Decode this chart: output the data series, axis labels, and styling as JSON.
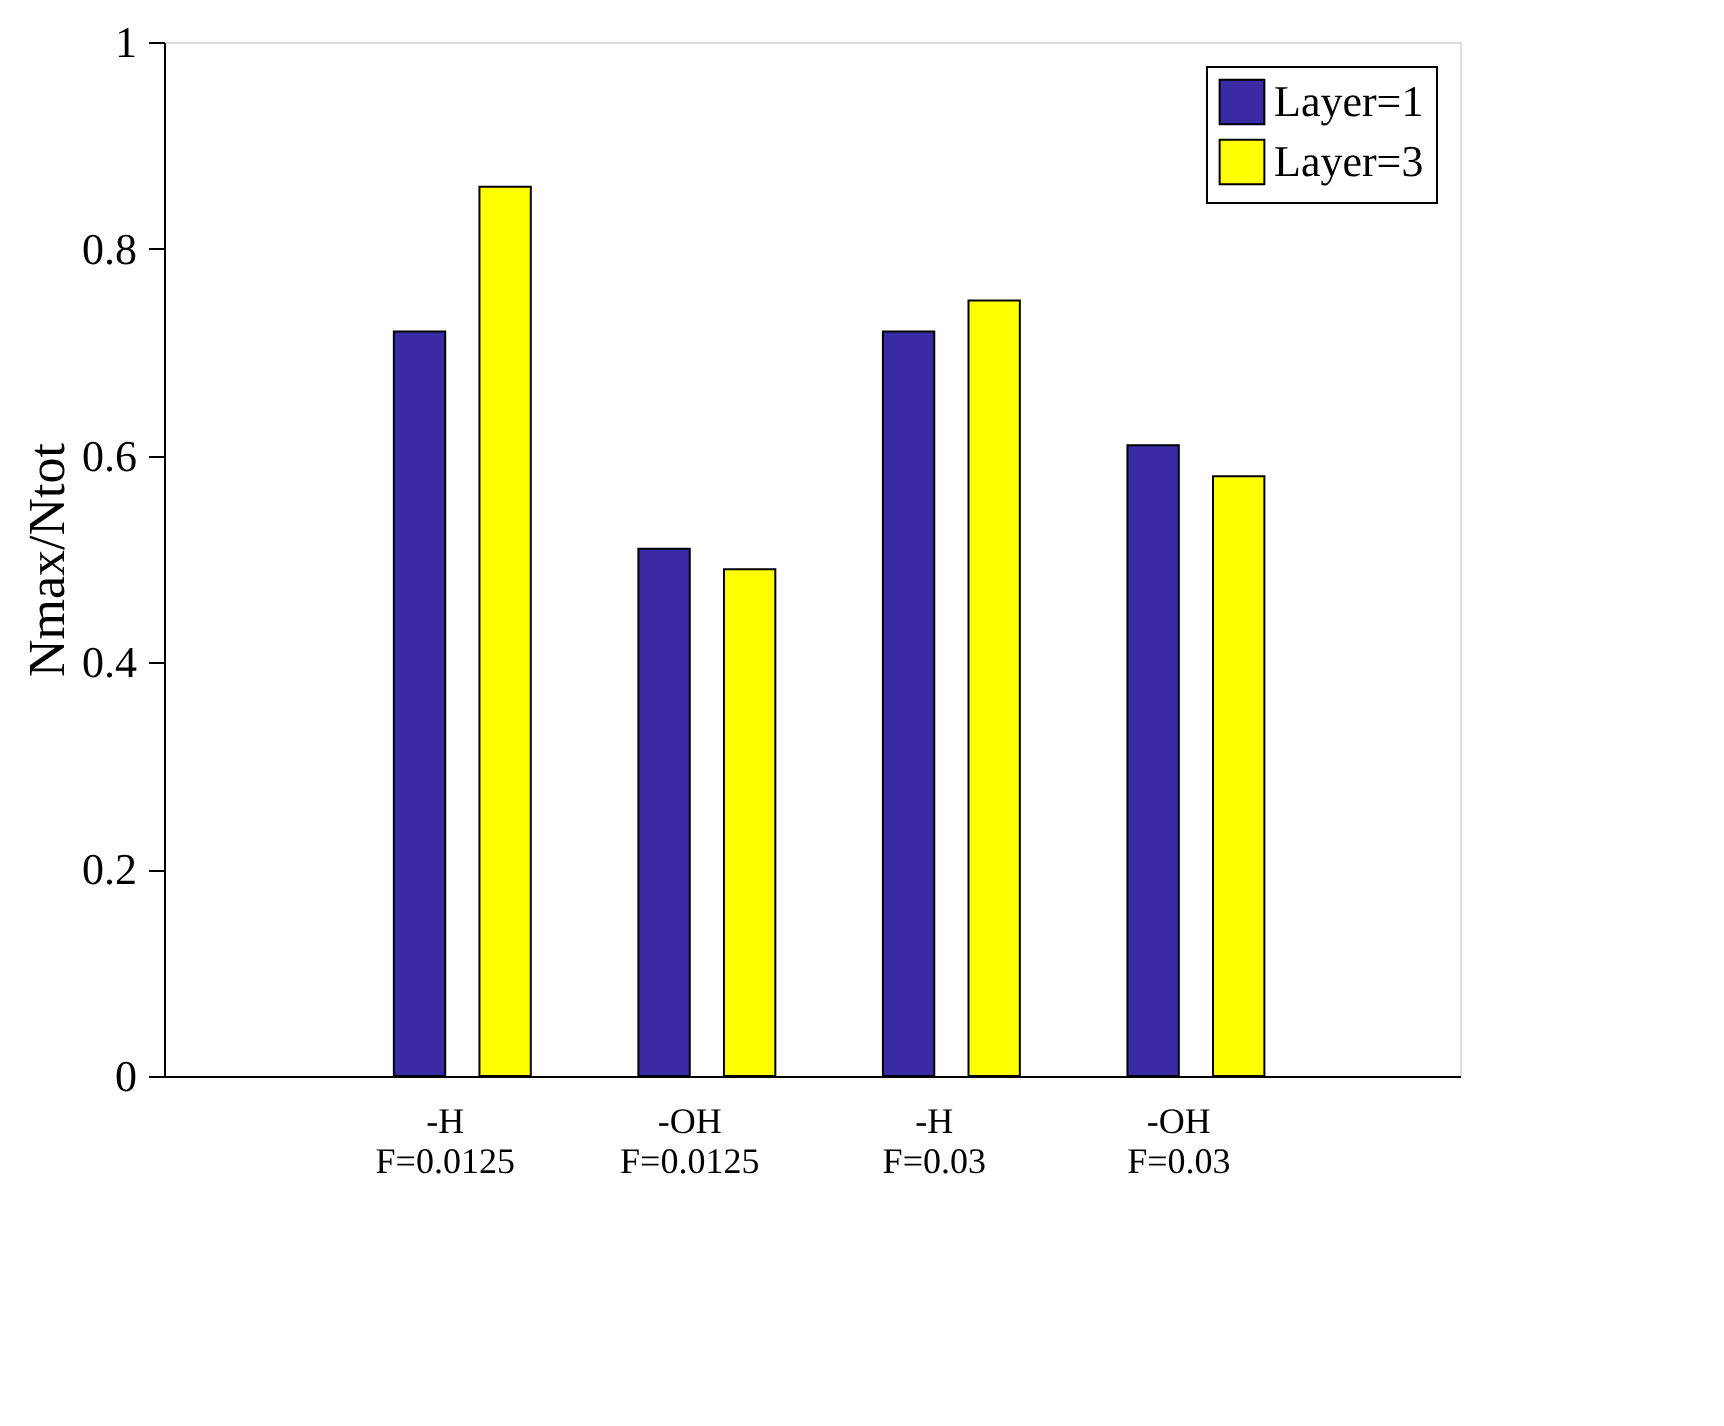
{
  "chart_data": {
    "type": "bar",
    "ylabel": "Nmax/Ntot",
    "categories": [
      "-H\nF=0.0125",
      "-OH\nF=0.0125",
      "-H\nF=0.03",
      "-OH\nF=0.03"
    ],
    "series": [
      {
        "name": "Layer=1",
        "color": "#3a2ba5",
        "values": [
          0.72,
          0.51,
          0.72,
          0.61
        ]
      },
      {
        "name": "Layer=3",
        "color": "#ffff00",
        "values": [
          0.86,
          0.49,
          0.75,
          0.58
        ]
      }
    ],
    "ylim": [
      0,
      1
    ],
    "yticks": [
      0,
      0.2,
      0.4,
      0.6,
      0.8,
      1
    ],
    "grid": false,
    "legend": "top right"
  }
}
